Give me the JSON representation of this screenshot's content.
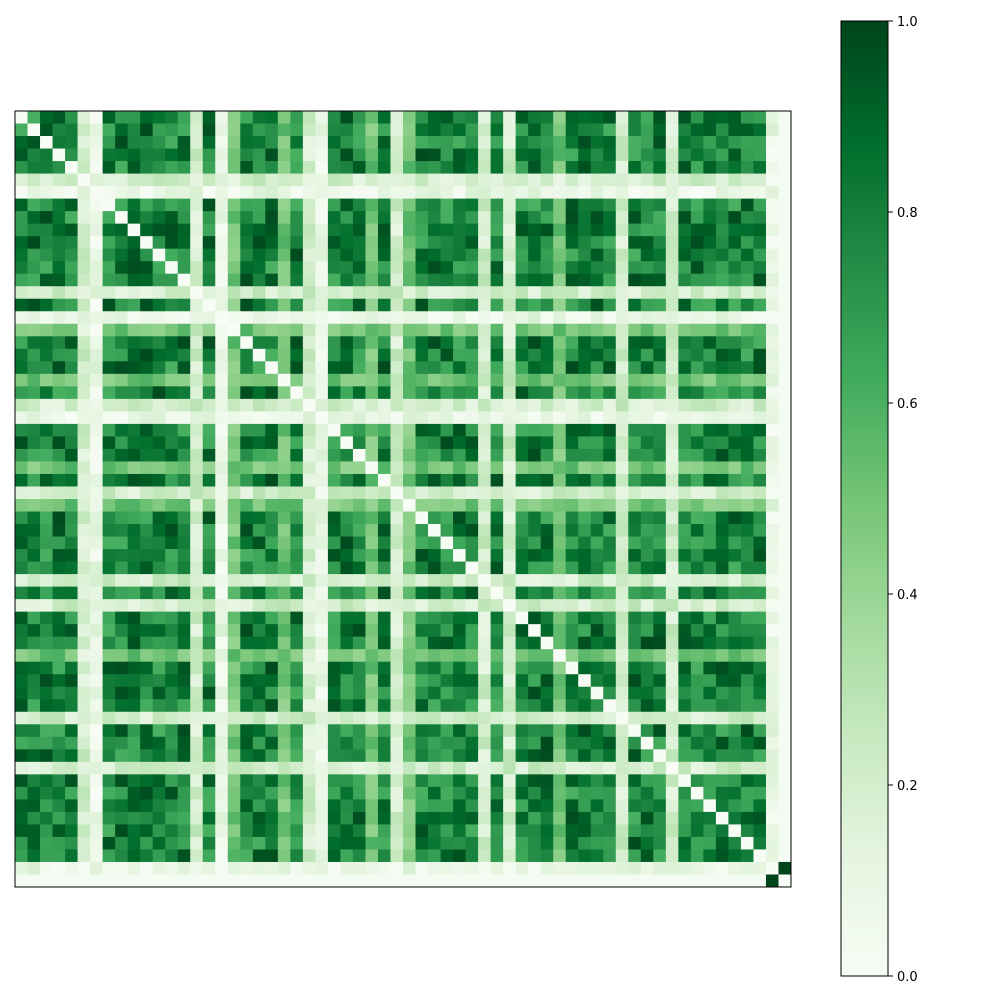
{
  "chart_data": {
    "type": "heatmap",
    "rows": 62,
    "cols": 62,
    "colormap": "Greens",
    "color_low": "#f7fcf5",
    "color_high": "#00441b",
    "vmin": 0.0,
    "vmax": 1.0,
    "axes_ticks_shown": false,
    "colorbar": {
      "placement": "right",
      "ticks": [
        0.0,
        0.2,
        0.4,
        0.6,
        0.8,
        1.0
      ],
      "tick_labels": [
        "0.0",
        "0.2",
        "0.4",
        "0.6",
        "0.8",
        "1.0"
      ]
    },
    "weak_indices": [
      5,
      14,
      23,
      30,
      37,
      39,
      48,
      52
    ],
    "mid_indices": [
      17,
      21,
      28,
      31,
      43
    ],
    "null_indices": [
      6,
      16,
      24,
      60
    ],
    "self_link": [
      [
        60,
        61
      ]
    ],
    "diagonal_value": 0.0,
    "strong_value_range": [
      0.6,
      0.98
    ],
    "weak_value_range": [
      0.1,
      0.3
    ],
    "mid_value_range": [
      0.4,
      0.6
    ],
    "null_value_range": [
      0.0,
      0.18
    ]
  }
}
